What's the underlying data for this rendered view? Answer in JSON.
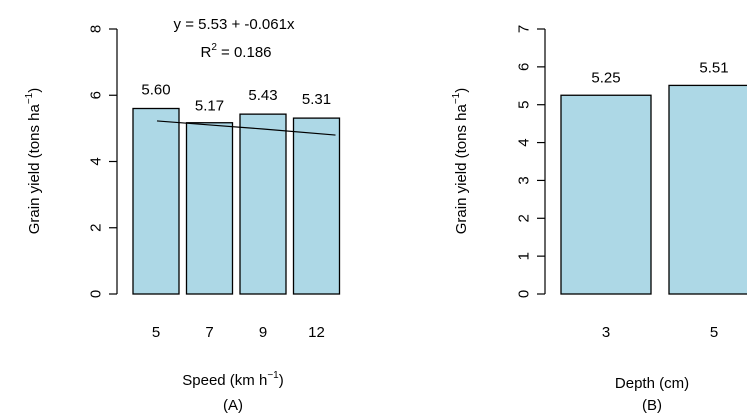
{
  "chart_data": [
    {
      "type": "bar",
      "panel_label": "(A)",
      "categories": [
        "5",
        "7",
        "9",
        "12"
      ],
      "values": [
        5.6,
        5.17,
        5.43,
        5.31
      ],
      "data_labels": [
        "5.60",
        "5.17",
        "5.43",
        "5.31"
      ],
      "xlabel": "Speed (km h",
      "xlabel_sup": "−1",
      "xlabel_end": ")",
      "ylabel": "Grain yield (tons ha",
      "ylabel_sup": "−1",
      "ylabel_end": ")",
      "ylim": [
        0,
        8
      ],
      "yticks": [
        "0",
        "2",
        "4",
        "6",
        "8"
      ],
      "grid": false,
      "regression": {
        "equation": "y = 5.53 + -0.061x",
        "r2_prefix": "R",
        "r2_sup": "2",
        "r2_value": " = 0.186",
        "intercept": 5.53,
        "slope": -0.061
      }
    },
    {
      "type": "bar",
      "panel_label": "(B)",
      "categories": [
        "3",
        "5"
      ],
      "values": [
        5.25,
        5.51
      ],
      "data_labels": [
        "5.25",
        "5.51"
      ],
      "xlabel": "Depth (cm)",
      "ylabel": "Grain yield (tons ha",
      "ylabel_sup": "−1",
      "ylabel_end": ")",
      "ylim": [
        0,
        7
      ],
      "yticks": [
        "0",
        "1",
        "2",
        "3",
        "4",
        "5",
        "6",
        "7"
      ],
      "grid": false
    }
  ]
}
